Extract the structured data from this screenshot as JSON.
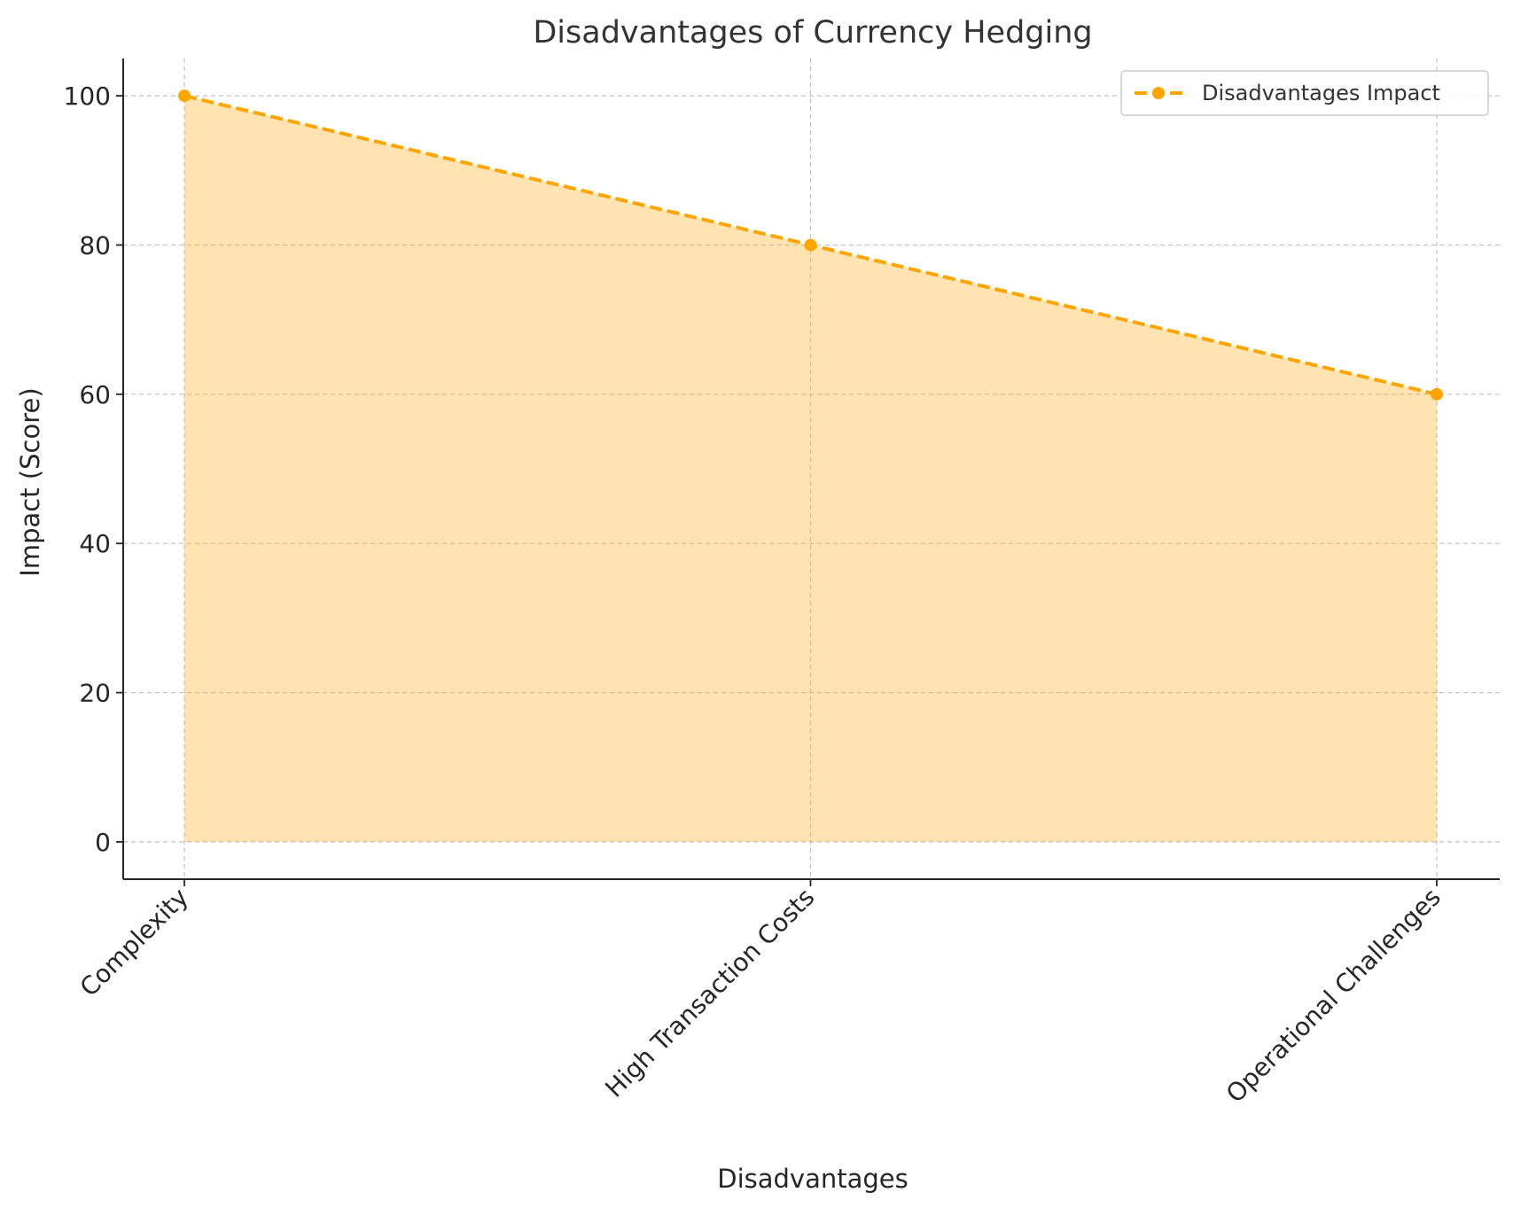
{
  "chart_data": {
    "type": "area",
    "title": "Disadvantages of Currency Hedging",
    "xlabel": "Disadvantages",
    "ylabel": "Impact (Score)",
    "categories": [
      "Complexity",
      "High Transaction Costs",
      "Operational Challenges"
    ],
    "series": [
      {
        "name": "Disadvantages Impact",
        "values": [
          100,
          80,
          60
        ],
        "color": "#FFA500",
        "line_style": "dashed",
        "marker": "circle",
        "fill_color": "#FFA500",
        "fill_opacity": 0.3
      }
    ],
    "ylim": [
      -5,
      105
    ],
    "yticks": [
      0,
      20,
      40,
      60,
      80,
      100
    ],
    "grid": true,
    "legend_position": "top-right",
    "xtick_rotation": -45
  }
}
